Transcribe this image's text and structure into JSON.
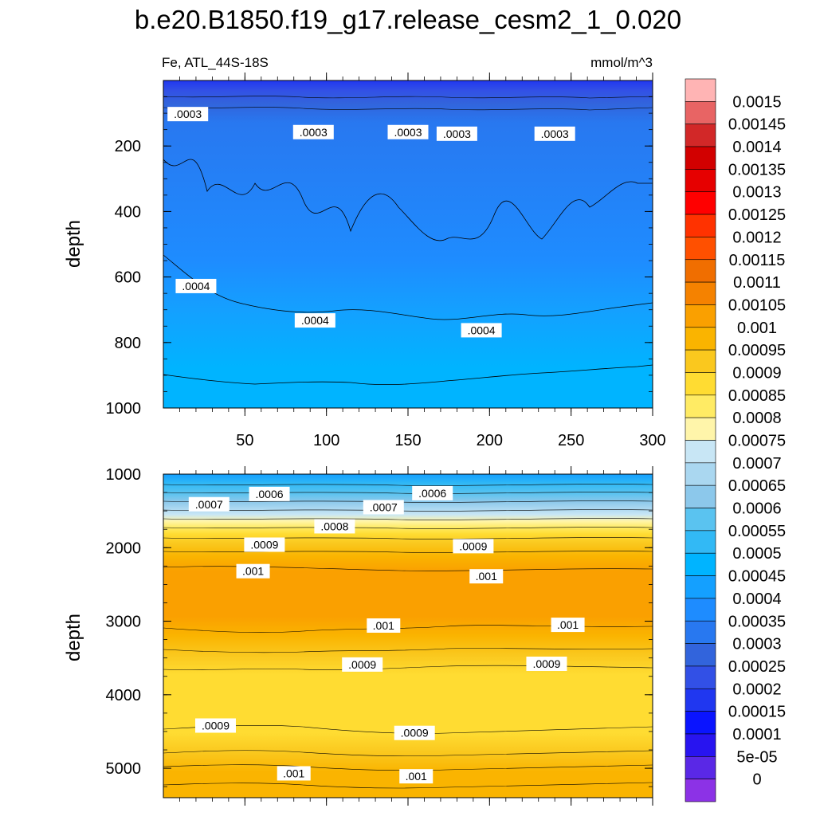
{
  "chart_data": [
    {
      "panel": "top",
      "type": "contour",
      "title": "b.e20.B1850.f19_g17.release_cesm2_1_0.020",
      "left_label": "Fe, ATL_44S-18S",
      "right_label": "mmol/m^3",
      "xlabel": "",
      "ylabel": "depth",
      "xlim": [
        0,
        300
      ],
      "ylim": [
        1000,
        0
      ],
      "xticks": [
        "50",
        "100",
        "150",
        "200",
        "250",
        "300"
      ],
      "xtick_values": [
        50,
        100,
        150,
        200,
        250,
        300
      ],
      "yticks": [
        "200",
        "400",
        "600",
        "800",
        "1000"
      ],
      "ytick_values": [
        200,
        400,
        600,
        800,
        1000
      ],
      "contour_labels": [
        {
          "text": ".0003",
          "x": 15,
          "y": 105
        },
        {
          "text": ".0003",
          "x": 92,
          "y": 160
        },
        {
          "text": ".0003",
          "x": 150,
          "y": 160
        },
        {
          "text": ".0003",
          "x": 180,
          "y": 165
        },
        {
          "text": ".0003",
          "x": 240,
          "y": 165
        },
        {
          "text": ".0004",
          "x": 20,
          "y": 630
        },
        {
          "text": ".0004",
          "x": 93,
          "y": 735
        },
        {
          "text": ".0004",
          "x": 195,
          "y": 765
        }
      ]
    },
    {
      "panel": "bottom",
      "type": "contour",
      "xlabel": "",
      "ylabel": "depth",
      "xlim": [
        0,
        300
      ],
      "ylim": [
        5400,
        1000
      ],
      "yticks": [
        "1000",
        "2000",
        "3000",
        "4000",
        "5000"
      ],
      "ytick_values": [
        1000,
        2000,
        3000,
        4000,
        5000
      ],
      "contour_labels": [
        {
          "text": ".0006",
          "x": 65,
          "y": 1280
        },
        {
          "text": ".0006",
          "x": 165,
          "y": 1270
        },
        {
          "text": ".0007",
          "x": 28,
          "y": 1420
        },
        {
          "text": ".0007",
          "x": 135,
          "y": 1460
        },
        {
          "text": ".0008",
          "x": 105,
          "y": 1720
        },
        {
          "text": ".0009",
          "x": 62,
          "y": 1970
        },
        {
          "text": ".0009",
          "x": 190,
          "y": 1990
        },
        {
          "text": ".001",
          "x": 55,
          "y": 2330
        },
        {
          "text": ".001",
          "x": 198,
          "y": 2400
        },
        {
          "text": ".001",
          "x": 135,
          "y": 3070
        },
        {
          "text": ".001",
          "x": 248,
          "y": 3060
        },
        {
          "text": ".0009",
          "x": 122,
          "y": 3600
        },
        {
          "text": ".0009",
          "x": 235,
          "y": 3590
        },
        {
          "text": ".0009",
          "x": 32,
          "y": 4430
        },
        {
          "text": ".0009",
          "x": 154,
          "y": 4530
        },
        {
          "text": ".001",
          "x": 80,
          "y": 5080
        },
        {
          "text": ".001",
          "x": 155,
          "y": 5120
        }
      ]
    }
  ],
  "colorbar": {
    "labels": [
      "0.0015",
      "0.00145",
      "0.0014",
      "0.00135",
      "0.0013",
      "0.00125",
      "0.0012",
      "0.00115",
      "0.0011",
      "0.00105",
      "0.001",
      "0.00095",
      "0.0009",
      "0.00085",
      "0.0008",
      "0.00075",
      "0.0007",
      "0.00065",
      "0.0006",
      "0.00055",
      "0.0005",
      "0.00045",
      "0.0004",
      "0.00035",
      "0.0003",
      "0.00025",
      "0.0002",
      "0.00015",
      "0.0001",
      "5e-05",
      "0"
    ],
    "colors": [
      "#ffb4b4",
      "#e86464",
      "#d22828",
      "#d20000",
      "#e60000",
      "#ff0000",
      "#ff3200",
      "#ff5000",
      "#f06e00",
      "#f58200",
      "#faa000",
      "#fab400",
      "#fac81e",
      "#ffdc32",
      "#ffeb64",
      "#fff5aa",
      "#c8e6f5",
      "#aad7f0",
      "#8cc8eb",
      "#5ac3f0",
      "#32b9f5",
      "#00b4ff",
      "#14a0ff",
      "#1e8cff",
      "#2878f0",
      "#3264dc",
      "#3250e6",
      "#2037f0",
      "#0a14ff",
      "#2814f0",
      "#5a28e6",
      "#8c32e6"
    ]
  }
}
